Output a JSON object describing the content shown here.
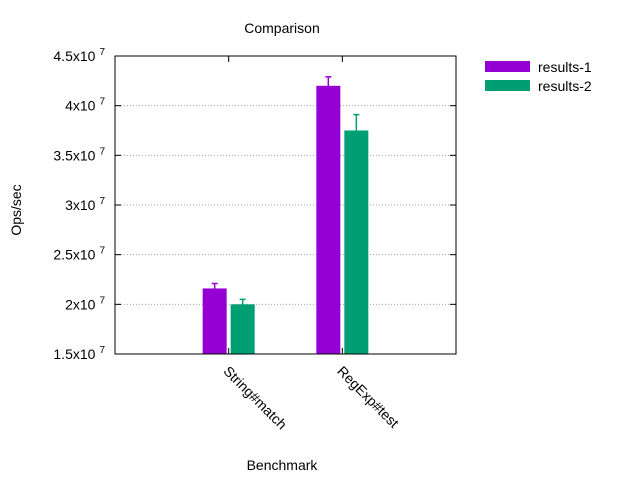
{
  "chart_data": {
    "type": "bar",
    "title": "Comparison",
    "xlabel": "Benchmark",
    "ylabel": "Ops/sec",
    "categories": [
      "String#match",
      "RegExp#test"
    ],
    "series": [
      {
        "name": "results-1",
        "color": "#9400d3",
        "values": [
          21600000,
          42000000
        ],
        "errors": [
          500000,
          900000
        ]
      },
      {
        "name": "results-2",
        "color": "#009e73",
        "values": [
          20000000,
          37500000
        ],
        "errors": [
          500000,
          1600000
        ]
      }
    ],
    "ylim": [
      15000000,
      45000000
    ],
    "yticks": [
      {
        "value": 15000000,
        "mantissa": "1.5x10",
        "exponent": "7"
      },
      {
        "value": 20000000,
        "mantissa": "2x10",
        "exponent": "7"
      },
      {
        "value": 25000000,
        "mantissa": "2.5x10",
        "exponent": "7"
      },
      {
        "value": 30000000,
        "mantissa": "3x10",
        "exponent": "7"
      },
      {
        "value": 35000000,
        "mantissa": "3.5x10",
        "exponent": "7"
      },
      {
        "value": 40000000,
        "mantissa": "4x10",
        "exponent": "7"
      },
      {
        "value": 45000000,
        "mantissa": "4.5x10",
        "exponent": "7"
      }
    ],
    "grid": true,
    "legend_position": "outside-top-right"
  }
}
